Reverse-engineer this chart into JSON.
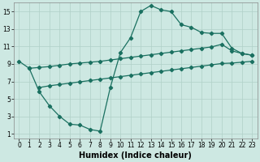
{
  "xlabel": "Humidex (Indice chaleur)",
  "bg_color": "#cde8e2",
  "line_color": "#1a7060",
  "grid_color": "#b0d0c8",
  "xlim": [
    -0.5,
    23.5
  ],
  "ylim": [
    0.5,
    16.0
  ],
  "xticks": [
    0,
    1,
    2,
    3,
    4,
    5,
    6,
    7,
    8,
    9,
    10,
    11,
    12,
    13,
    14,
    15,
    16,
    17,
    18,
    19,
    20,
    21,
    22,
    23
  ],
  "yticks": [
    1,
    3,
    5,
    7,
    9,
    11,
    13,
    15
  ],
  "line1_x": [
    0,
    1,
    2,
    3,
    4,
    5,
    6,
    7,
    8,
    9,
    10,
    11,
    12,
    13,
    14,
    15,
    16,
    17,
    18,
    19,
    20,
    21,
    22,
    23
  ],
  "line1_y": [
    9.3,
    8.5,
    8.6,
    8.7,
    8.85,
    9.0,
    9.1,
    9.2,
    9.3,
    9.45,
    9.6,
    9.75,
    9.9,
    10.05,
    10.2,
    10.35,
    10.5,
    10.65,
    10.8,
    10.95,
    11.25,
    10.5,
    10.2,
    10.0
  ],
  "line2_x": [
    2,
    3,
    4,
    5,
    6,
    7,
    8,
    9,
    10,
    11,
    12,
    13,
    14,
    15,
    16,
    17,
    18,
    19,
    20,
    21,
    22,
    23
  ],
  "line2_y": [
    6.3,
    6.5,
    6.65,
    6.8,
    6.95,
    7.1,
    7.25,
    7.4,
    7.55,
    7.7,
    7.85,
    8.0,
    8.15,
    8.3,
    8.45,
    8.6,
    8.75,
    8.9,
    9.05,
    9.1,
    9.2,
    9.3
  ],
  "line3_x": [
    1,
    2,
    3,
    4,
    5,
    6,
    7,
    8,
    9,
    10,
    11,
    12,
    13,
    14,
    15,
    16,
    17,
    18,
    19,
    20,
    21,
    22,
    23
  ],
  "line3_y": [
    8.5,
    5.8,
    4.2,
    3.0,
    2.1,
    2.0,
    1.5,
    1.3,
    6.3,
    10.3,
    12.0,
    15.0,
    15.7,
    15.2,
    15.0,
    13.5,
    13.2,
    12.6,
    12.5,
    12.5,
    10.8,
    10.2,
    10.0
  ],
  "marker_size": 2.2,
  "line_width": 0.9,
  "tick_fontsize": 5.5,
  "label_fontsize": 7.0
}
